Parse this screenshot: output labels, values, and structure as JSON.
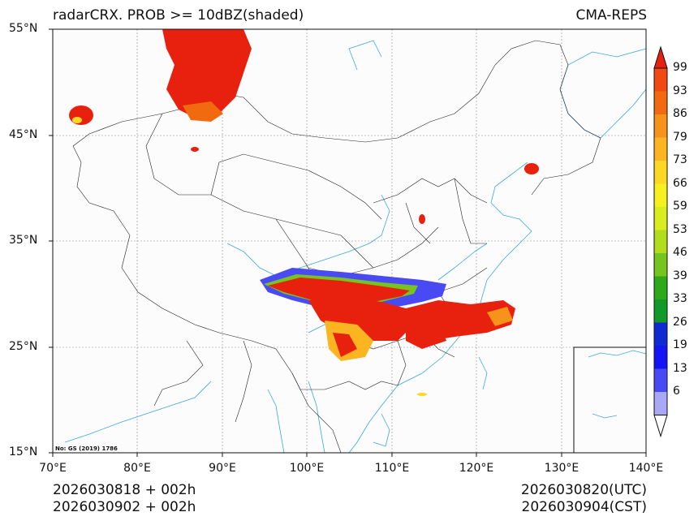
{
  "header": {
    "title": "radarCRX. PROB >= 10dBZ(shaded)",
    "model": "CMA-REPS"
  },
  "axes": {
    "lat_labels": [
      "55°N",
      "45°N",
      "35°N",
      "25°N",
      "15°N"
    ],
    "lon_labels": [
      "70°E",
      "80°E",
      "90°E",
      "100°E",
      "110°E",
      "120°E",
      "130°E",
      "140°E"
    ]
  },
  "colorbar": {
    "labels": [
      "99",
      "93",
      "86",
      "79",
      "73",
      "66",
      "59",
      "53",
      "46",
      "39",
      "33",
      "26",
      "19",
      "13",
      "6"
    ],
    "colors": [
      "#e8200e",
      "#f04a12",
      "#f26a10",
      "#f7931a",
      "#fbb520",
      "#fcd724",
      "#f7f020",
      "#d9ec1e",
      "#b1dd1d",
      "#76c41e",
      "#2ea91a",
      "#119a2a",
      "#0f2ad1",
      "#1414f5",
      "#4a4af5",
      "#a8a8f5"
    ]
  },
  "credit": "No: GS (2019) 1786",
  "footer": {
    "init_utc": "2026030818  +  002h",
    "init_cst": "2026030902  +  002h",
    "valid_utc": "2026030820(UTC)",
    "valid_cst": "2026030904(CST)"
  }
}
